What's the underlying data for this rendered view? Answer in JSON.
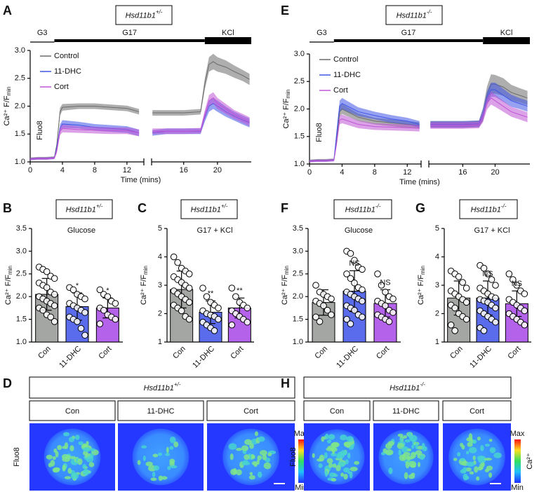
{
  "chart_data": [
    {
      "type": "line",
      "panel": "A",
      "genotype": "Hsd11b1",
      "genotype_sup": "+/-",
      "ylabel": "Ca²⁺ F/F",
      "ylabel_sub": "min",
      "xlabel": "Time (mins)",
      "annotation": "Fluo8",
      "stimuli": [
        {
          "label": "G3",
          "start": 0,
          "end": 3
        },
        {
          "label": "G17",
          "start": 3,
          "end": 18.5
        },
        {
          "label": "KCl",
          "start": 18.5,
          "end": 24
        }
      ],
      "x_segments": [
        [
          0,
          14.1
        ],
        [
          12.2,
          24
        ]
      ],
      "xticks": [
        0,
        4,
        8,
        12,
        16,
        20
      ],
      "ylim": [
        1,
        3
      ],
      "yticks": [
        {
          "value": 1,
          "label": "1.0"
        },
        {
          "value": 1.5,
          "label": "1.5"
        },
        {
          "value": 2,
          "label": "2.0"
        },
        {
          "value": 2.5,
          "label": "2.5"
        },
        {
          "value": 3,
          "label": "3.0"
        }
      ],
      "x": [
        0,
        1,
        2,
        3,
        3.3,
        3.7,
        4,
        6,
        8,
        10,
        12,
        13.5,
        null,
        12.3,
        14,
        16,
        18,
        18.5,
        19,
        19.5,
        20,
        21,
        22,
        23,
        23.8
      ],
      "series": [
        {
          "name": "Control",
          "color": "#6b6b6b",
          "values": [
            1.06,
            1.07,
            1.07,
            1.08,
            1.3,
            1.9,
            1.98,
            2.0,
            2.0,
            1.98,
            1.96,
            1.9,
            null,
            1.88,
            1.88,
            1.88,
            1.9,
            2.4,
            2.75,
            2.8,
            2.75,
            2.7,
            2.62,
            2.55,
            2.48
          ],
          "errors": [
            0.02,
            0.02,
            0.02,
            0.02,
            0.05,
            0.07,
            0.06,
            0.05,
            0.05,
            0.05,
            0.05,
            0.05,
            null,
            0.05,
            0.05,
            0.05,
            0.05,
            0.1,
            0.13,
            0.14,
            0.13,
            0.12,
            0.11,
            0.1,
            0.1
          ]
        },
        {
          "name": "11-DHC",
          "color": "#3f55e6",
          "values": [
            1.05,
            1.06,
            1.06,
            1.07,
            1.25,
            1.6,
            1.68,
            1.66,
            1.62,
            1.6,
            1.58,
            1.52,
            null,
            1.52,
            1.55,
            1.55,
            1.55,
            1.8,
            2.0,
            2.05,
            2.0,
            1.9,
            1.82,
            1.75,
            1.7
          ],
          "errors": [
            0.02,
            0.02,
            0.02,
            0.02,
            0.05,
            0.07,
            0.07,
            0.06,
            0.06,
            0.06,
            0.06,
            0.06,
            null,
            0.05,
            0.05,
            0.05,
            0.05,
            0.08,
            0.1,
            0.1,
            0.1,
            0.09,
            0.08,
            0.08,
            0.08
          ]
        },
        {
          "name": "Cort",
          "color": "#c055d6",
          "values": [
            1.05,
            1.06,
            1.06,
            1.07,
            1.2,
            1.55,
            1.6,
            1.58,
            1.57,
            1.56,
            1.56,
            1.52,
            null,
            1.55,
            1.55,
            1.55,
            1.56,
            1.85,
            2.1,
            2.15,
            2.05,
            1.95,
            1.85,
            1.78,
            1.72
          ],
          "errors": [
            0.02,
            0.02,
            0.02,
            0.02,
            0.05,
            0.07,
            0.07,
            0.06,
            0.06,
            0.06,
            0.06,
            0.06,
            null,
            0.05,
            0.05,
            0.05,
            0.05,
            0.08,
            0.1,
            0.1,
            0.1,
            0.09,
            0.08,
            0.08,
            0.08
          ]
        }
      ]
    },
    {
      "type": "bar",
      "panel": "B",
      "genotype": "Hsd11b1",
      "genotype_sup": "+/-",
      "subtitle": "Glucose",
      "ylabel": "Ca²⁺ F/F",
      "ylabel_sub": "min",
      "categories": [
        "Con",
        "11-DHC",
        "Cort"
      ],
      "colors": [
        "#a3a6a3",
        "#5a6cec",
        "#b462ea"
      ],
      "values": [
        2.05,
        1.78,
        1.75
      ],
      "errors": [
        0.35,
        0.3,
        0.22
      ],
      "significance": [
        null,
        "*",
        "*"
      ],
      "points": [
        [
          2.65,
          2.6,
          2.55,
          2.45,
          2.4,
          2.3,
          2.25,
          2.2,
          2.1,
          2.05,
          2.0,
          1.95,
          1.9,
          1.85,
          1.8,
          1.75,
          1.7,
          1.6,
          1.55,
          1.45
        ],
        [
          2.2,
          2.15,
          2.05,
          2.0,
          1.95,
          1.85,
          1.8,
          1.75,
          1.7,
          1.65,
          1.55,
          1.5,
          1.45,
          1.3,
          1.15
        ],
        [
          2.15,
          2.05,
          2.0,
          1.9,
          1.85,
          1.75,
          1.7,
          1.6,
          1.55,
          1.5,
          1.4
        ]
      ],
      "ylim": [
        1,
        3.5
      ],
      "yticks": [
        {
          "value": 1,
          "label": "1.0"
        },
        {
          "value": 1.5,
          "label": "1.5"
        },
        {
          "value": 2,
          "label": "2.0"
        },
        {
          "value": 2.5,
          "label": "2.5"
        },
        {
          "value": 3,
          "label": "3.0"
        },
        {
          "value": 3.5,
          "label": "3.5"
        }
      ]
    },
    {
      "type": "bar",
      "panel": "C",
      "genotype": "Hsd11b1",
      "genotype_sup": "+/-",
      "subtitle": "G17 + KCl",
      "ylabel": "Ca²⁺ F/F",
      "ylabel_sub": "min",
      "categories": [
        "Con",
        "11-DHC",
        "Cort"
      ],
      "colors": [
        "#a3a6a3",
        "#5a6cec",
        "#b462ea"
      ],
      "values": [
        2.85,
        2.05,
        2.2
      ],
      "errors": [
        0.65,
        0.4,
        0.35
      ],
      "significance": [
        null,
        "**",
        "**"
      ],
      "points": [
        [
          4.0,
          3.8,
          3.6,
          3.5,
          3.4,
          3.3,
          3.2,
          3.1,
          3.0,
          2.9,
          2.8,
          2.7,
          2.6,
          2.5,
          2.4,
          2.3,
          2.2,
          2.1,
          1.9,
          1.8
        ],
        [
          2.9,
          2.6,
          2.4,
          2.3,
          2.2,
          2.1,
          2.0,
          1.95,
          1.9,
          1.8,
          1.7,
          1.6,
          1.5,
          1.4
        ],
        [
          2.9,
          2.6,
          2.4,
          2.3,
          2.2,
          2.1,
          2.0,
          1.9,
          1.8,
          1.7,
          1.6
        ]
      ],
      "ylim": [
        1,
        5
      ],
      "yticks": [
        1,
        2,
        3,
        4,
        5
      ]
    },
    {
      "type": "line",
      "panel": "E",
      "genotype": "Hsd11b1",
      "genotype_sup": "-/-",
      "ylabel": "Ca²⁺ F/F",
      "ylabel_sub": "min",
      "xlabel": "Time (mins)",
      "annotation": "Fluo8",
      "stimuli": [
        {
          "label": "G3",
          "start": 0,
          "end": 3
        },
        {
          "label": "G17",
          "start": 3,
          "end": 18.5
        },
        {
          "label": "KCl",
          "start": 18.5,
          "end": 24.3
        }
      ],
      "x_segments": [
        [
          0,
          13.7
        ],
        [
          11.8,
          24.3
        ]
      ],
      "xticks": [
        0,
        4,
        8,
        12,
        16,
        20
      ],
      "ylim": [
        1,
        3
      ],
      "yticks": [
        {
          "value": 1,
          "label": "1.0"
        },
        {
          "value": 1.5,
          "label": "1.5"
        },
        {
          "value": 2,
          "label": "2.0"
        },
        {
          "value": 2.5,
          "label": "2.5"
        },
        {
          "value": 3,
          "label": "3.0"
        }
      ],
      "x": [
        0,
        1,
        2,
        3,
        3.3,
        3.7,
        4,
        6,
        8,
        10,
        12,
        13.5,
        null,
        12,
        14,
        16,
        18,
        18.5,
        19,
        19.5,
        20,
        21,
        22,
        23,
        24
      ],
      "series": [
        {
          "name": "Control",
          "color": "#6b6b6b",
          "values": [
            1.06,
            1.07,
            1.07,
            1.08,
            1.4,
            1.95,
            2.0,
            1.85,
            1.78,
            1.75,
            1.72,
            1.7,
            null,
            1.72,
            1.72,
            1.72,
            1.73,
            1.9,
            2.25,
            2.45,
            2.45,
            2.4,
            2.3,
            2.25,
            2.2
          ],
          "errors": [
            0.02,
            0.02,
            0.02,
            0.02,
            0.06,
            0.09,
            0.09,
            0.07,
            0.06,
            0.06,
            0.06,
            0.06,
            null,
            0.06,
            0.06,
            0.06,
            0.06,
            0.12,
            0.16,
            0.18,
            0.17,
            0.16,
            0.14,
            0.13,
            0.13
          ]
        },
        {
          "name": "11-DHC",
          "color": "#3f55e6",
          "values": [
            1.05,
            1.06,
            1.06,
            1.07,
            1.5,
            2.05,
            2.1,
            1.95,
            1.88,
            1.82,
            1.78,
            1.72,
            null,
            1.72,
            1.72,
            1.72,
            1.73,
            1.9,
            2.2,
            2.35,
            2.35,
            2.25,
            2.15,
            2.1,
            2.05
          ],
          "errors": [
            0.02,
            0.02,
            0.02,
            0.02,
            0.07,
            0.1,
            0.1,
            0.08,
            0.07,
            0.07,
            0.06,
            0.06,
            null,
            0.06,
            0.06,
            0.06,
            0.06,
            0.1,
            0.12,
            0.13,
            0.13,
            0.12,
            0.11,
            0.1,
            0.1
          ]
        },
        {
          "name": "Cort",
          "color": "#c055d6",
          "values": [
            1.05,
            1.06,
            1.06,
            1.07,
            1.35,
            1.8,
            1.82,
            1.72,
            1.68,
            1.67,
            1.66,
            1.65,
            null,
            1.7,
            1.7,
            1.7,
            1.71,
            1.85,
            2.1,
            2.2,
            2.15,
            2.05,
            1.95,
            1.9,
            1.85
          ],
          "errors": [
            0.02,
            0.02,
            0.02,
            0.02,
            0.06,
            0.08,
            0.08,
            0.07,
            0.06,
            0.06,
            0.06,
            0.06,
            null,
            0.06,
            0.06,
            0.06,
            0.06,
            0.09,
            0.11,
            0.12,
            0.11,
            0.1,
            0.09,
            0.09,
            0.09
          ]
        }
      ]
    },
    {
      "type": "bar",
      "panel": "F",
      "genotype": "Hsd11b1",
      "genotype_sup": "-/-",
      "subtitle": "Glucose",
      "ylabel": "Ca²⁺ F/F",
      "ylabel_sub": "min",
      "categories": [
        "Con",
        "11-DHC",
        "Cort"
      ],
      "colors": [
        "#a3a6a3",
        "#5a6cec",
        "#b462ea"
      ],
      "values": [
        1.87,
        2.12,
        1.85
      ],
      "errors": [
        0.28,
        0.45,
        0.3
      ],
      "significance": [
        null,
        "NS",
        "NS"
      ],
      "points": [
        [
          2.25,
          2.1,
          2.05,
          2.0,
          1.95,
          1.9,
          1.85,
          1.8,
          1.7,
          1.6,
          1.55,
          1.45
        ],
        [
          3.0,
          2.95,
          2.8,
          2.65,
          2.6,
          2.5,
          2.4,
          2.3,
          2.2,
          2.15,
          2.1,
          2.05,
          2.0,
          1.95,
          1.9,
          1.8,
          1.75,
          1.7,
          1.6,
          1.55,
          1.5,
          1.4
        ],
        [
          2.5,
          2.25,
          2.1,
          2.0,
          1.95,
          1.9,
          1.85,
          1.8,
          1.7,
          1.65,
          1.6,
          1.55,
          1.5,
          1.45
        ]
      ],
      "ylim": [
        1,
        3.5
      ],
      "yticks": [
        {
          "value": 1,
          "label": "1.0"
        },
        {
          "value": 1.5,
          "label": "1.5"
        },
        {
          "value": 2,
          "label": "2.0"
        },
        {
          "value": 2.5,
          "label": "2.5"
        },
        {
          "value": 3,
          "label": "3.0"
        },
        {
          "value": 3.5,
          "label": "3.5"
        }
      ]
    },
    {
      "type": "bar",
      "panel": "G",
      "genotype": "Hsd11b1",
      "genotype_sup": "-/-",
      "subtitle": "G17 + KCl",
      "ylabel": "Ca²⁺ F/F",
      "ylabel_sub": "min",
      "categories": [
        "Con",
        "11-DHC",
        "Cort"
      ],
      "colors": [
        "#a3a6a3",
        "#5a6cec",
        "#b462ea"
      ],
      "values": [
        2.55,
        2.55,
        2.35
      ],
      "errors": [
        0.6,
        0.6,
        0.45
      ],
      "significance": [
        null,
        "NS",
        "NS"
      ],
      "points": [
        [
          3.5,
          3.4,
          3.3,
          3.1,
          2.9,
          2.8,
          2.7,
          2.6,
          2.5,
          2.4,
          2.3,
          2.2,
          2.0,
          1.9,
          1.8,
          1.6,
          1.4
        ],
        [
          3.7,
          3.6,
          3.4,
          3.2,
          3.0,
          2.9,
          2.8,
          2.7,
          2.6,
          2.55,
          2.5,
          2.45,
          2.4,
          2.3,
          2.2,
          2.1,
          2.0,
          1.9,
          1.8,
          1.7,
          1.5,
          1.4
        ],
        [
          3.4,
          3.2,
          3.0,
          2.8,
          2.7,
          2.5,
          2.4,
          2.3,
          2.2,
          2.1,
          2.0,
          1.9,
          1.8,
          1.7,
          1.6
        ]
      ],
      "ylim": [
        1,
        5
      ],
      "yticks": [
        1,
        2,
        3,
        4,
        5
      ]
    }
  ],
  "image_panels": [
    {
      "panel": "D",
      "genotype": "Hsd11b1",
      "genotype_sup": "+/-",
      "conditions": [
        "Con",
        "11-DHC",
        "Cort"
      ],
      "stain": "Fluo8",
      "colorbar": {
        "max": "Max",
        "min": "Min",
        "label": "Ca²⁺"
      }
    },
    {
      "panel": "H",
      "genotype": "Hsd11b1",
      "genotype_sup": "-/-",
      "conditions": [
        "Con",
        "11-DHC",
        "Cort"
      ],
      "stain": "Fluo8",
      "colorbar": {
        "max": "Max",
        "min": "Min",
        "label": "Ca²⁺"
      }
    }
  ]
}
